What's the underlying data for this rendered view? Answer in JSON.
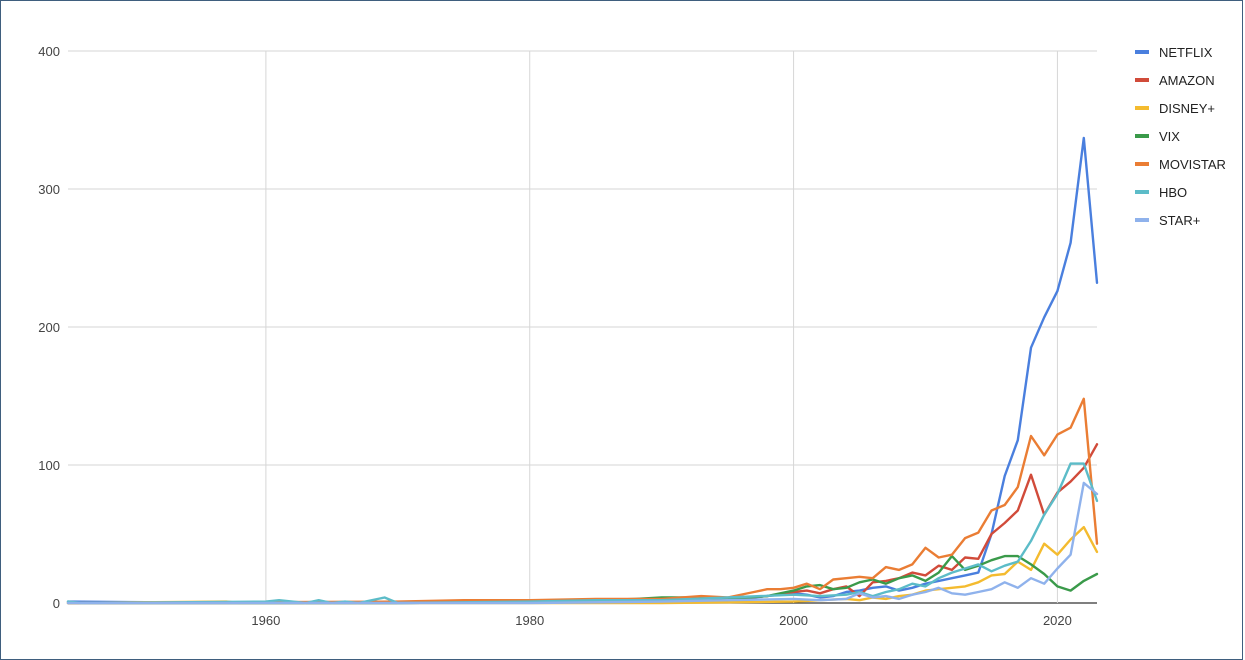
{
  "chart_data": {
    "type": "line",
    "title": "",
    "xlabel": "",
    "ylabel": "",
    "xlim": [
      1945,
      2023
    ],
    "ylim": [
      0,
      400
    ],
    "x_ticks": [
      "1960",
      "1980",
      "2000",
      "2020"
    ],
    "x_tick_values": [
      1960,
      1980,
      2000,
      2020
    ],
    "y_ticks": [
      "0",
      "100",
      "200",
      "300",
      "400"
    ],
    "y_tick_values": [
      0,
      100,
      200,
      300,
      400
    ],
    "grid": true,
    "legend_position": "right",
    "series": [
      {
        "name": "NETFLIX",
        "color": "#4a7fde",
        "points": [
          [
            1945,
            1
          ],
          [
            1960,
            0
          ],
          [
            1970,
            0
          ],
          [
            1980,
            1
          ],
          [
            1990,
            1
          ],
          [
            1995,
            2
          ],
          [
            2000,
            7
          ],
          [
            2001,
            6
          ],
          [
            2002,
            4
          ],
          [
            2003,
            5
          ],
          [
            2004,
            8
          ],
          [
            2005,
            9
          ],
          [
            2006,
            11
          ],
          [
            2007,
            12
          ],
          [
            2008,
            9
          ],
          [
            2009,
            11
          ],
          [
            2010,
            14
          ],
          [
            2011,
            16
          ],
          [
            2012,
            18
          ],
          [
            2013,
            20
          ],
          [
            2014,
            22
          ],
          [
            2015,
            50
          ],
          [
            2016,
            92
          ],
          [
            2017,
            118
          ],
          [
            2018,
            185
          ],
          [
            2019,
            207
          ],
          [
            2020,
            226
          ],
          [
            2021,
            261
          ],
          [
            2022,
            337
          ],
          [
            2023,
            232
          ]
        ]
      },
      {
        "name": "AMAZON",
        "color": "#d14b3a",
        "points": [
          [
            1945,
            0
          ],
          [
            1960,
            0
          ],
          [
            1970,
            0
          ],
          [
            1980,
            1
          ],
          [
            1990,
            2
          ],
          [
            1995,
            3
          ],
          [
            1998,
            5
          ],
          [
            2000,
            8
          ],
          [
            2001,
            9
          ],
          [
            2002,
            7
          ],
          [
            2003,
            10
          ],
          [
            2004,
            12
          ],
          [
            2005,
            5
          ],
          [
            2006,
            15
          ],
          [
            2007,
            16
          ],
          [
            2008,
            18
          ],
          [
            2009,
            22
          ],
          [
            2010,
            20
          ],
          [
            2011,
            27
          ],
          [
            2012,
            24
          ],
          [
            2013,
            33
          ],
          [
            2014,
            32
          ],
          [
            2015,
            50
          ],
          [
            2016,
            58
          ],
          [
            2017,
            67
          ],
          [
            2018,
            93
          ],
          [
            2019,
            64
          ],
          [
            2020,
            80
          ],
          [
            2021,
            88
          ],
          [
            2022,
            98
          ],
          [
            2023,
            115
          ]
        ]
      },
      {
        "name": "DISNEY+",
        "color": "#f4bb2f",
        "points": [
          [
            1945,
            0
          ],
          [
            1957,
            1
          ],
          [
            1958,
            0
          ],
          [
            1970,
            0
          ],
          [
            1980,
            0
          ],
          [
            1990,
            0
          ],
          [
            2000,
            1
          ],
          [
            2002,
            2
          ],
          [
            2004,
            3
          ],
          [
            2005,
            2
          ],
          [
            2006,
            4
          ],
          [
            2007,
            3
          ],
          [
            2008,
            5
          ],
          [
            2009,
            6
          ],
          [
            2010,
            9
          ],
          [
            2011,
            10
          ],
          [
            2012,
            11
          ],
          [
            2013,
            12
          ],
          [
            2014,
            15
          ],
          [
            2015,
            20
          ],
          [
            2016,
            21
          ],
          [
            2017,
            30
          ],
          [
            2018,
            24
          ],
          [
            2019,
            43
          ],
          [
            2020,
            35
          ],
          [
            2021,
            46
          ],
          [
            2022,
            55
          ],
          [
            2023,
            37
          ]
        ]
      },
      {
        "name": "VIX",
        "color": "#3a9a4a",
        "points": [
          [
            1945,
            0
          ],
          [
            1970,
            0
          ],
          [
            1980,
            1
          ],
          [
            1985,
            2
          ],
          [
            1988,
            3
          ],
          [
            1990,
            4
          ],
          [
            1992,
            4
          ],
          [
            1995,
            3
          ],
          [
            1998,
            5
          ],
          [
            2000,
            9
          ],
          [
            2001,
            12
          ],
          [
            2002,
            13
          ],
          [
            2003,
            10
          ],
          [
            2004,
            11
          ],
          [
            2005,
            15
          ],
          [
            2006,
            17
          ],
          [
            2007,
            14
          ],
          [
            2008,
            18
          ],
          [
            2009,
            20
          ],
          [
            2010,
            16
          ],
          [
            2011,
            22
          ],
          [
            2012,
            34
          ],
          [
            2013,
            24
          ],
          [
            2014,
            27
          ],
          [
            2015,
            31
          ],
          [
            2016,
            34
          ],
          [
            2017,
            34
          ],
          [
            2018,
            28
          ],
          [
            2019,
            21
          ],
          [
            2020,
            12
          ],
          [
            2021,
            9
          ],
          [
            2022,
            16
          ],
          [
            2023,
            21
          ]
        ]
      },
      {
        "name": "MOVISTAR",
        "color": "#ea7d34",
        "points": [
          [
            1945,
            0
          ],
          [
            1970,
            1
          ],
          [
            1975,
            2
          ],
          [
            1980,
            2
          ],
          [
            1985,
            3
          ],
          [
            1990,
            3
          ],
          [
            1993,
            5
          ],
          [
            1995,
            4
          ],
          [
            1997,
            8
          ],
          [
            1998,
            10
          ],
          [
            1999,
            10
          ],
          [
            2000,
            11
          ],
          [
            2001,
            14
          ],
          [
            2002,
            10
          ],
          [
            2003,
            17
          ],
          [
            2004,
            18
          ],
          [
            2005,
            19
          ],
          [
            2006,
            18
          ],
          [
            2007,
            26
          ],
          [
            2008,
            24
          ],
          [
            2009,
            28
          ],
          [
            2010,
            40
          ],
          [
            2011,
            33
          ],
          [
            2012,
            35
          ],
          [
            2013,
            47
          ],
          [
            2014,
            51
          ],
          [
            2015,
            67
          ],
          [
            2016,
            71
          ],
          [
            2017,
            84
          ],
          [
            2018,
            121
          ],
          [
            2019,
            107
          ],
          [
            2020,
            122
          ],
          [
            2021,
            127
          ],
          [
            2022,
            148
          ],
          [
            2023,
            43
          ]
        ]
      },
      {
        "name": "HBO",
        "color": "#5cbcc8",
        "points": [
          [
            1945,
            1
          ],
          [
            1946,
            0
          ],
          [
            1960,
            1
          ],
          [
            1961,
            2
          ],
          [
            1963,
            0
          ],
          [
            1964,
            2
          ],
          [
            1965,
            0
          ],
          [
            1966,
            1
          ],
          [
            1967,
            0
          ],
          [
            1969,
            4
          ],
          [
            1970,
            0
          ],
          [
            1980,
            1
          ],
          [
            1985,
            2
          ],
          [
            1990,
            2
          ],
          [
            1995,
            4
          ],
          [
            2000,
            6
          ],
          [
            2002,
            5
          ],
          [
            2004,
            6
          ],
          [
            2005,
            8
          ],
          [
            2006,
            5
          ],
          [
            2007,
            8
          ],
          [
            2008,
            10
          ],
          [
            2009,
            14
          ],
          [
            2010,
            12
          ],
          [
            2011,
            18
          ],
          [
            2012,
            22
          ],
          [
            2013,
            25
          ],
          [
            2014,
            28
          ],
          [
            2015,
            23
          ],
          [
            2016,
            27
          ],
          [
            2017,
            30
          ],
          [
            2018,
            45
          ],
          [
            2019,
            64
          ],
          [
            2020,
            79
          ],
          [
            2021,
            101
          ],
          [
            2022,
            101
          ],
          [
            2023,
            74
          ]
        ]
      },
      {
        "name": "STAR+",
        "color": "#8fb2ec",
        "points": [
          [
            1945,
            0
          ],
          [
            1970,
            0
          ],
          [
            1980,
            0
          ],
          [
            1990,
            1
          ],
          [
            1995,
            2
          ],
          [
            2000,
            3
          ],
          [
            2002,
            2
          ],
          [
            2004,
            3
          ],
          [
            2005,
            7
          ],
          [
            2006,
            4
          ],
          [
            2007,
            5
          ],
          [
            2008,
            3
          ],
          [
            2009,
            6
          ],
          [
            2010,
            8
          ],
          [
            2011,
            11
          ],
          [
            2012,
            7
          ],
          [
            2013,
            6
          ],
          [
            2014,
            8
          ],
          [
            2015,
            10
          ],
          [
            2016,
            15
          ],
          [
            2017,
            11
          ],
          [
            2018,
            18
          ],
          [
            2019,
            14
          ],
          [
            2020,
            25
          ],
          [
            2021,
            35
          ],
          [
            2022,
            87
          ],
          [
            2023,
            79
          ]
        ]
      }
    ]
  }
}
